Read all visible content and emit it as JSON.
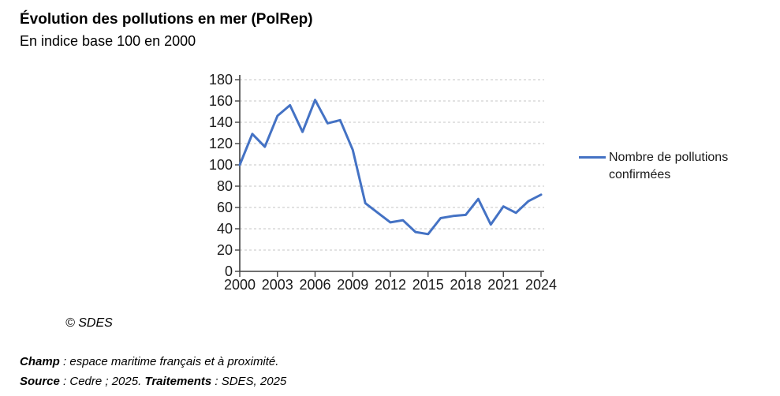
{
  "title": "Évolution des pollutions en mer (PolRep)",
  "subtitle": "En indice base 100 en 2000",
  "credit": "© SDES",
  "legend": {
    "label": "Nombre de pollutions confirmées"
  },
  "notes": {
    "champ_label": "Champ",
    "champ_text": " : espace maritime français et à proximité.",
    "source_label": "Source",
    "source_text": " : Cedre ; 2025. ",
    "traitements_label": "Traitements",
    "traitements_text": " : SDES, 2025"
  },
  "colors": {
    "line": "#4472C4",
    "grid": "#d8d8d8",
    "axis": "#404040",
    "tick_text": "#1a1a1a"
  },
  "chart_data": {
    "type": "line",
    "title": "Évolution des pollutions en mer (PolRep)",
    "subtitle": "En indice base 100 en 2000",
    "x": [
      2000,
      2001,
      2002,
      2003,
      2004,
      2005,
      2006,
      2007,
      2008,
      2009,
      2010,
      2011,
      2012,
      2013,
      2014,
      2015,
      2016,
      2017,
      2018,
      2019,
      2020,
      2021,
      2022,
      2023,
      2024
    ],
    "series": [
      {
        "name": "Nombre de pollutions confirmées",
        "color": "#4472C4",
        "values": [
          100,
          129,
          117,
          146,
          156,
          131,
          161,
          139,
          142,
          114,
          64,
          55,
          46,
          48,
          37,
          35,
          50,
          52,
          53,
          68,
          44,
          61,
          55,
          66,
          72
        ]
      }
    ],
    "xlabel": "",
    "ylabel": "",
    "ylim": [
      0,
      180
    ],
    "ytick_step": 20,
    "xtick_step": 3,
    "grid": "horizontal-dashed",
    "legend_position": "right"
  }
}
